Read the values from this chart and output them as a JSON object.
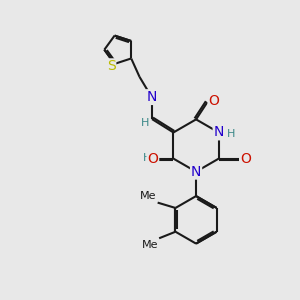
{
  "bg_color": "#e8e8e8",
  "bond_color": "#1a1a1a",
  "bond_width": 1.5,
  "dbl_sep": 0.06,
  "colors": {
    "N": "#2200cc",
    "O": "#cc1100",
    "S": "#bbbb00",
    "H": "#3a8888",
    "C": "#1a1a1a"
  },
  "fs": 9.0,
  "fs_small": 8.0
}
